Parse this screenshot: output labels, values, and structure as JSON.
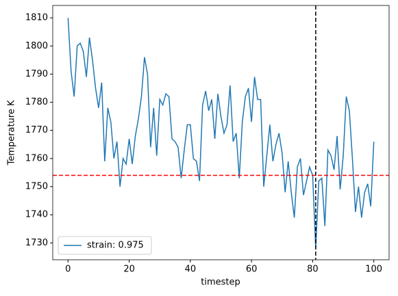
{
  "chart_data": {
    "type": "line",
    "x_label": "timestep",
    "y_label": "Temperature K",
    "x": [
      0,
      1,
      2,
      3,
      4,
      5,
      6,
      7,
      8,
      9,
      10,
      11,
      12,
      13,
      14,
      15,
      16,
      17,
      18,
      19,
      20,
      21,
      22,
      23,
      24,
      25,
      26,
      27,
      28,
      29,
      30,
      31,
      32,
      33,
      34,
      35,
      36,
      37,
      38,
      39,
      40,
      41,
      42,
      43,
      44,
      45,
      46,
      47,
      48,
      49,
      50,
      51,
      52,
      53,
      54,
      55,
      56,
      57,
      58,
      59,
      60,
      61,
      62,
      63,
      64,
      65,
      66,
      67,
      68,
      69,
      70,
      71,
      72,
      73,
      74,
      75,
      76,
      77,
      78,
      79,
      80,
      81,
      82,
      83,
      84,
      85,
      86,
      87,
      88,
      89,
      90,
      91,
      92,
      93,
      94,
      95,
      96,
      97,
      98,
      99,
      100
    ],
    "series": [
      {
        "name": "strain: 0.975",
        "color": "#1f77b4",
        "values": [
          1810,
          1791,
          1782,
          1800,
          1801,
          1798,
          1789,
          1803,
          1795,
          1785,
          1778,
          1787,
          1759,
          1778,
          1773,
          1760,
          1766,
          1750,
          1760,
          1758,
          1767,
          1758,
          1768,
          1774,
          1782,
          1796,
          1790,
          1764,
          1778,
          1761,
          1781,
          1779,
          1783,
          1782,
          1767,
          1766,
          1764,
          1753,
          1763,
          1772,
          1772,
          1760,
          1759,
          1752,
          1779,
          1784,
          1777,
          1781,
          1767,
          1783,
          1775,
          1769,
          1772,
          1786,
          1766,
          1769,
          1753,
          1773,
          1782,
          1785,
          1773,
          1789,
          1781,
          1781,
          1750,
          1761,
          1772,
          1759,
          1765,
          1769,
          1762,
          1748,
          1759,
          1748,
          1739,
          1757,
          1760,
          1747,
          1752,
          1757,
          1754,
          1728,
          1752,
          1753,
          1736,
          1763,
          1761,
          1756,
          1768,
          1749,
          1761,
          1782,
          1777,
          1760,
          1741,
          1750,
          1739,
          1748,
          1751,
          1743,
          1766
        ]
      }
    ],
    "hline": 1754,
    "hline_color": "#ff0000",
    "vline": 81,
    "vline_color": "#000000",
    "xlim": [
      -5,
      105
    ],
    "xticks": [
      0,
      20,
      40,
      60,
      80,
      100
    ],
    "ylim": [
      1724,
      1814.4
    ],
    "yticks": [
      1730,
      1740,
      1750,
      1760,
      1770,
      1780,
      1790,
      1800,
      1810
    ],
    "legend": "lower left"
  }
}
